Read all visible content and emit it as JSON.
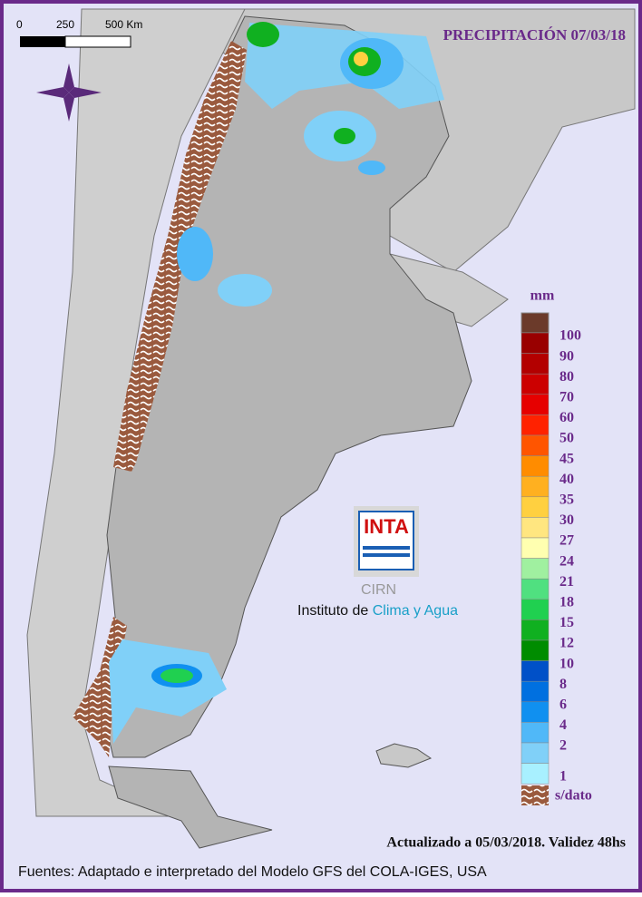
{
  "title": "PRECIPITACIÓN 07/03/18",
  "scale_bar": {
    "labels": [
      "0",
      "250",
      "500 Km"
    ]
  },
  "legend": {
    "unit": "mm",
    "items": [
      {
        "label": "100",
        "color": "#990000"
      },
      {
        "label": "90",
        "color": "#b30000"
      },
      {
        "label": "80",
        "color": "#cc0000"
      },
      {
        "label": "70",
        "color": "#e60000"
      },
      {
        "label": "60",
        "color": "#ff2200"
      },
      {
        "label": "50",
        "color": "#ff5500"
      },
      {
        "label": "45",
        "color": "#ff8c00"
      },
      {
        "label": "40",
        "color": "#ffb020"
      },
      {
        "label": "35",
        "color": "#ffd040"
      },
      {
        "label": "30",
        "color": "#ffe680"
      },
      {
        "label": "27",
        "color": "#ffffb0"
      },
      {
        "label": "24",
        "color": "#a0f0a0"
      },
      {
        "label": "21",
        "color": "#50e080"
      },
      {
        "label": "18",
        "color": "#20d050"
      },
      {
        "label": "15",
        "color": "#10b020"
      },
      {
        "label": "12",
        "color": "#008c00"
      },
      {
        "label": "10",
        "color": "#0050c8"
      },
      {
        "label": "8",
        "color": "#0070e0"
      },
      {
        "label": "6",
        "color": "#1090f0"
      },
      {
        "label": "4",
        "color": "#50b8f8"
      },
      {
        "label": "2",
        "color": "#80d0f8"
      },
      {
        "label": "1",
        "color": "#a8f0ff"
      }
    ],
    "no_data": "s/dato"
  },
  "logo": {
    "name": "INTA",
    "center": "CIRN",
    "institute": "Instituto de ",
    "institute_highlight": "Clima y Agua"
  },
  "updated": "Actualizado a 05/03/2018. Validez 48hs",
  "sources": "Fuentes: Adaptado e interpretado del Modelo GFS del COLA-IGES, USA"
}
